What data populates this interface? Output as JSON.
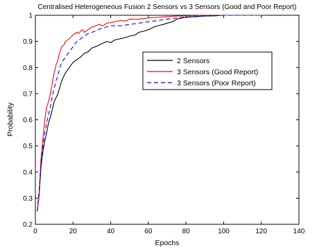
{
  "chart_data": {
    "type": "line",
    "title": "Centralised Heterogeneous Fusion 2 Sensors vs 3 Sensors (Good and Poor Report)",
    "xlabel": "Epochs",
    "ylabel": "Probability",
    "xlim": [
      0,
      140
    ],
    "ylim": [
      0.2,
      1
    ],
    "xticks": [
      "0",
      "20",
      "40",
      "60",
      "80",
      "100",
      "120",
      "140"
    ],
    "yticks": [
      "0.2",
      "0.3",
      "0.4",
      "0.5",
      "0.6",
      "0.7",
      "0.8",
      "0.9",
      "1"
    ],
    "grid": false,
    "legend_position": "upper-right",
    "series": [
      {
        "name": "2 Sensors",
        "color": "#000000",
        "line_style": "solid",
        "points": [
          [
            1,
            0.25
          ],
          [
            2,
            0.31
          ],
          [
            3,
            0.42
          ],
          [
            4,
            0.48
          ],
          [
            5,
            0.52
          ],
          [
            6,
            0.55
          ],
          [
            7,
            0.59
          ],
          [
            8,
            0.61
          ],
          [
            9,
            0.64
          ],
          [
            10,
            0.67
          ],
          [
            12,
            0.7
          ],
          [
            14,
            0.75
          ],
          [
            16,
            0.78
          ],
          [
            18,
            0.8
          ],
          [
            20,
            0.82
          ],
          [
            22,
            0.83
          ],
          [
            24,
            0.84
          ],
          [
            26,
            0.855
          ],
          [
            28,
            0.86
          ],
          [
            30,
            0.875
          ],
          [
            32,
            0.88
          ],
          [
            35,
            0.89
          ],
          [
            38,
            0.9
          ],
          [
            40,
            0.895
          ],
          [
            42,
            0.905
          ],
          [
            45,
            0.91
          ],
          [
            48,
            0.915
          ],
          [
            50,
            0.92
          ],
          [
            53,
            0.925
          ],
          [
            55,
            0.935
          ],
          [
            58,
            0.94
          ],
          [
            60,
            0.945
          ],
          [
            63,
            0.955
          ],
          [
            65,
            0.96
          ],
          [
            68,
            0.965
          ],
          [
            70,
            0.97
          ],
          [
            73,
            0.975
          ],
          [
            75,
            0.985
          ],
          [
            78,
            0.99
          ],
          [
            80,
            0.992
          ],
          [
            85,
            0.995
          ],
          [
            90,
            0.997
          ],
          [
            95,
            0.998
          ],
          [
            100,
            1
          ],
          [
            110,
            1
          ],
          [
            120,
            1
          ]
        ]
      },
      {
        "name": "3 Sensors (Good Report)",
        "color": "#ff0000",
        "line_style": "solid",
        "points": [
          [
            1,
            0.25
          ],
          [
            2,
            0.32
          ],
          [
            3,
            0.45
          ],
          [
            4,
            0.53
          ],
          [
            5,
            0.6
          ],
          [
            6,
            0.65
          ],
          [
            7,
            0.67
          ],
          [
            8,
            0.7
          ],
          [
            9,
            0.74
          ],
          [
            10,
            0.78
          ],
          [
            11,
            0.81
          ],
          [
            12,
            0.83
          ],
          [
            13,
            0.86
          ],
          [
            14,
            0.88
          ],
          [
            15,
            0.885
          ],
          [
            16,
            0.9
          ],
          [
            18,
            0.91
          ],
          [
            20,
            0.925
          ],
          [
            22,
            0.935
          ],
          [
            23,
            0.93
          ],
          [
            24,
            0.94
          ],
          [
            25,
            0.945
          ],
          [
            26,
            0.935
          ],
          [
            28,
            0.945
          ],
          [
            30,
            0.955
          ],
          [
            32,
            0.96
          ],
          [
            34,
            0.965
          ],
          [
            36,
            0.96
          ],
          [
            38,
            0.97
          ],
          [
            40,
            0.972
          ],
          [
            42,
            0.975
          ],
          [
            45,
            0.98
          ],
          [
            48,
            0.978
          ],
          [
            50,
            0.985
          ],
          [
            55,
            0.985
          ],
          [
            60,
            0.99
          ],
          [
            65,
            0.992
          ],
          [
            70,
            0.995
          ],
          [
            75,
            0.997
          ],
          [
            80,
            0.998
          ],
          [
            85,
            0.999
          ],
          [
            90,
            1
          ],
          [
            100,
            1
          ],
          [
            110,
            1
          ],
          [
            120,
            1
          ]
        ]
      },
      {
        "name": "3 Sensors (Poor Report)",
        "color": "#0000ff",
        "line_style": "dashed",
        "points": [
          [
            1,
            0.25
          ],
          [
            2,
            0.33
          ],
          [
            3,
            0.43
          ],
          [
            4,
            0.5
          ],
          [
            5,
            0.55
          ],
          [
            6,
            0.59
          ],
          [
            7,
            0.62
          ],
          [
            8,
            0.65
          ],
          [
            9,
            0.69
          ],
          [
            10,
            0.72
          ],
          [
            11,
            0.75
          ],
          [
            12,
            0.77
          ],
          [
            13,
            0.8
          ],
          [
            14,
            0.82
          ],
          [
            15,
            0.83
          ],
          [
            16,
            0.84
          ],
          [
            18,
            0.86
          ],
          [
            20,
            0.88
          ],
          [
            22,
            0.9
          ],
          [
            24,
            0.91
          ],
          [
            26,
            0.92
          ],
          [
            28,
            0.93
          ],
          [
            30,
            0.935
          ],
          [
            32,
            0.94
          ],
          [
            35,
            0.95
          ],
          [
            38,
            0.955
          ],
          [
            40,
            0.96
          ],
          [
            45,
            0.96
          ],
          [
            50,
            0.965
          ],
          [
            55,
            0.97
          ],
          [
            60,
            0.975
          ],
          [
            65,
            0.98
          ],
          [
            70,
            0.985
          ],
          [
            75,
            0.99
          ],
          [
            80,
            0.993
          ],
          [
            85,
            0.996
          ],
          [
            90,
            0.998
          ],
          [
            95,
            1
          ],
          [
            100,
            1
          ],
          [
            110,
            1
          ],
          [
            120,
            1
          ]
        ]
      }
    ]
  }
}
